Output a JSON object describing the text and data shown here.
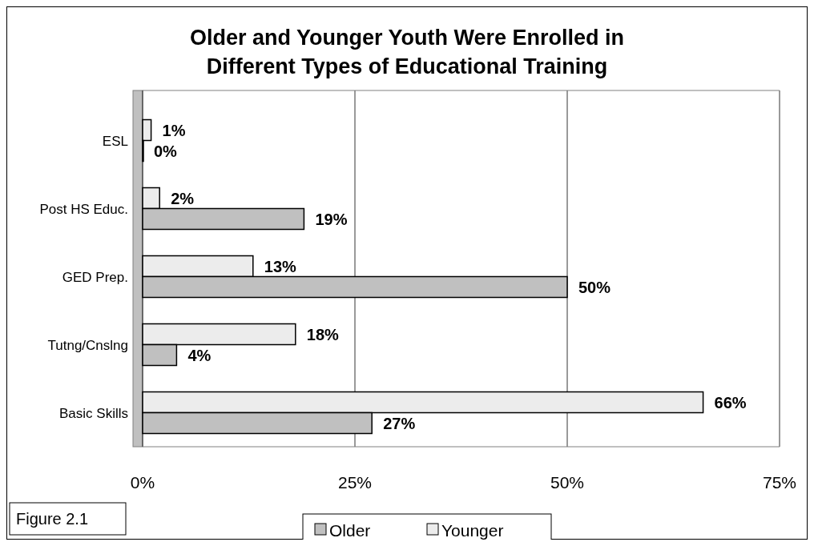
{
  "chart_data": {
    "type": "bar",
    "orientation": "horizontal",
    "title": "Older and Younger Youth Were Enrolled in Different Types of Educational Training",
    "categories": [
      "ESL",
      "Post HS Educ.",
      "GED Prep.",
      "Tutng/Cnslng",
      "Basic Skills"
    ],
    "series": [
      {
        "name": "Younger",
        "color": "#ececec",
        "values": [
          1,
          2,
          13,
          18,
          66
        ],
        "value_labels": [
          "1%",
          "2%",
          "13%",
          "18%",
          "66%"
        ]
      },
      {
        "name": "Older",
        "color": "#c0c0c0",
        "values": [
          0,
          19,
          50,
          4,
          27
        ],
        "value_labels": [
          "0%",
          "19%",
          "50%",
          "4%",
          "27%"
        ]
      }
    ],
    "xlim": [
      0,
      75
    ],
    "xticks": [
      {
        "value": 0,
        "label": "0%"
      },
      {
        "value": 25,
        "label": "25%"
      },
      {
        "value": 50,
        "label": "50%"
      },
      {
        "value": 75,
        "label": "75%"
      }
    ],
    "grid": "x",
    "legend": "bottom",
    "annotations": [
      "Figure 2.1"
    ]
  }
}
